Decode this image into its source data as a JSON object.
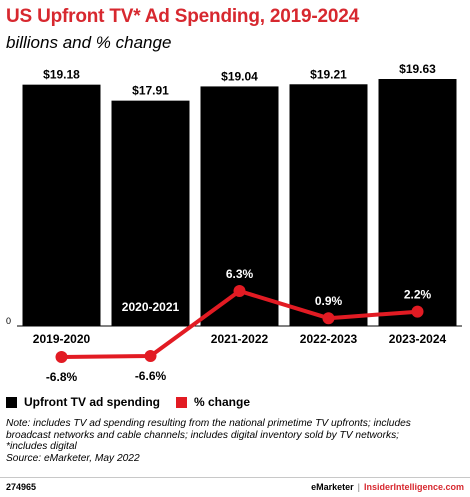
{
  "header": {
    "title": "US Upfront TV* Ad Spending, 2019-2024",
    "subtitle": "billions and % change"
  },
  "colors": {
    "title": "#d7282f",
    "bars": "#000000",
    "line": "#e21b23"
  },
  "chart_data": {
    "type": "bar",
    "categories": [
      "2019-2020",
      "2020-2021",
      "2021-2022",
      "2022-2023",
      "2023-2024"
    ],
    "series": [
      {
        "name": "Upfront TV ad spending",
        "type": "bar",
        "axis": "primary",
        "values": [
          19.18,
          17.91,
          19.04,
          19.21,
          19.63
        ],
        "labels": [
          "$19.18",
          "$17.91",
          "$19.04",
          "$19.21",
          "$19.63"
        ]
      },
      {
        "name": "% change",
        "type": "line",
        "axis": "secondary",
        "values": [
          -6.8,
          -6.6,
          6.3,
          0.9,
          2.2
        ],
        "labels": [
          "-6.8%",
          "-6.6%",
          "6.3%",
          "0.9%",
          "2.2%"
        ]
      }
    ],
    "y_zero_label": "0",
    "ylim": [
      0,
      19.63
    ],
    "y2lim": [
      -6.8,
      6.3
    ],
    "legend_position": "bottom-left"
  },
  "legend": [
    {
      "label": "Upfront TV ad spending",
      "color": "#000000"
    },
    {
      "label": "% change",
      "color": "#e21b23"
    }
  ],
  "footnote": {
    "lines": [
      "Note: includes TV ad spending resulting from the national primetime TV upfronts; includes",
      "broadcast networks and cable channels; includes digital inventory sold by TV networks;",
      "*includes digital",
      "Source: eMarketer, May 2022"
    ]
  },
  "footer": {
    "chart_id": "274965",
    "brand_primary": "eMarketer",
    "brand_separator": "|",
    "brand_secondary": "InsiderIntelligence.com"
  }
}
